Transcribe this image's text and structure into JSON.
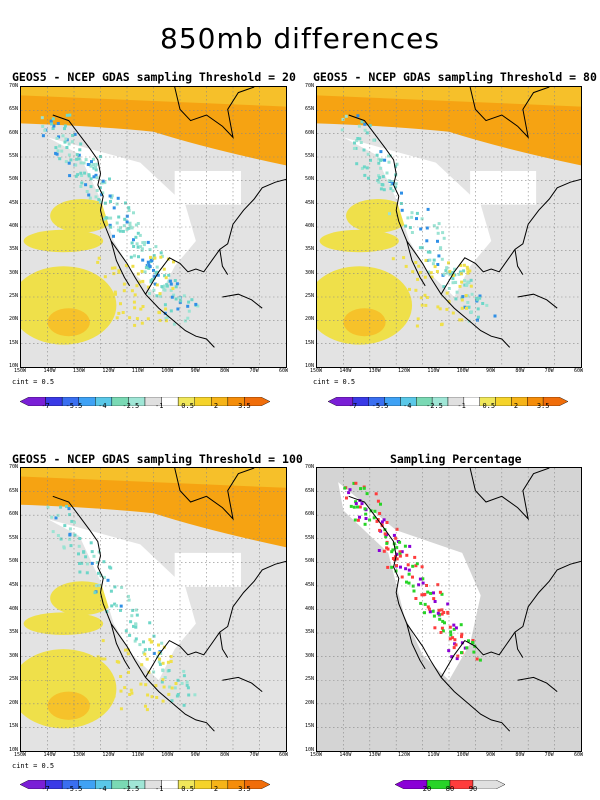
{
  "title": "850mb differences",
  "panels": [
    {
      "title": "GEOS5 - NCEP GDAS sampling Threshold = 20",
      "cint": "cint = 0.5"
    },
    {
      "title": "GEOS5 - NCEP GDAS sampling Threshold = 80",
      "cint": "cint = 0.5"
    },
    {
      "title": "GEOS5 - NCEP GDAS sampling Threshold = 100",
      "cint": "cint = 0.5"
    },
    {
      "title": "Sampling Percentage"
    }
  ],
  "lat_ticks": [
    "70N",
    "65N",
    "60N",
    "55N",
    "50N",
    "45N",
    "40N",
    "35N",
    "30N",
    "25N",
    "20N",
    "15N",
    "10N"
  ],
  "lon_ticks": [
    "150W",
    "140W",
    "130W",
    "120W",
    "110W",
    "100W",
    "90W",
    "80W",
    "70W",
    "60W"
  ],
  "colorbar_diff": {
    "labels": [
      "-7",
      "-5.5",
      "-4",
      "-2.5",
      "-1",
      "0.5",
      "2",
      "3.5"
    ],
    "colors": [
      "#7a1fd6",
      "#3a3ae6",
      "#3a6ff0",
      "#3fa2f5",
      "#5ac8e8",
      "#7ad9b4",
      "#a0e6d6",
      "#e0e0e0",
      "#ffffff",
      "#f0e75a",
      "#f5d32a",
      "#f6b418",
      "#f58d0a",
      "#f06d0a"
    ]
  },
  "colorbar_pct": {
    "labels": [
      "20",
      "80",
      "90"
    ],
    "colors": [
      "#8a00d6",
      "#27d427",
      "#ff3c3c",
      "#e0e0e0"
    ]
  },
  "legend_colors": {
    "orange": "#f6a312",
    "yellow": "#efe04a",
    "gray": "#d9d9d9",
    "cyan": "#6ed6c8",
    "blue": "#2f8fe6"
  }
}
